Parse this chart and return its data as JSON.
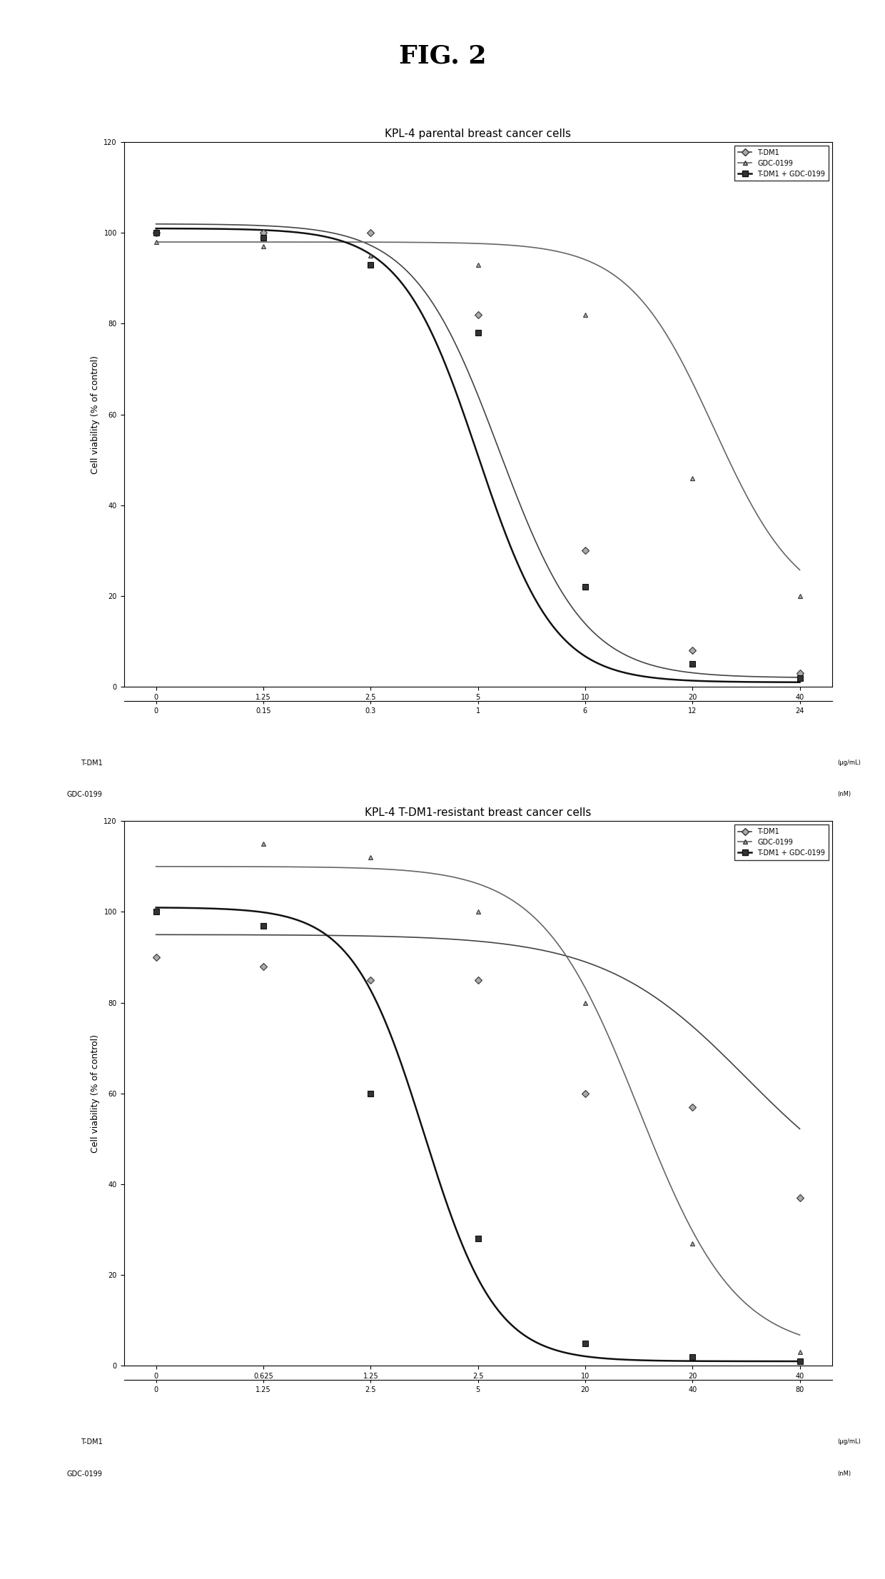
{
  "fig_title": "FIG. 2",
  "plot1_title": "KPL-4 parental breast cancer cells",
  "plot2_title": "KPL-4 T-DM1-resistant breast cancer cells",
  "ylabel": "Cell viability (% of control)",
  "ylim": [
    0,
    120
  ],
  "yticks": [
    0,
    20,
    40,
    60,
    80,
    100,
    120
  ],
  "plot1_xticks_top": [
    "0",
    "1.25",
    "2.5",
    "5",
    "10",
    "20",
    "40"
  ],
  "plot1_xticks_bot": [
    "0",
    "0.15",
    "0.3",
    "1",
    "6",
    "12",
    "24"
  ],
  "plot2_xticks_top": [
    "0",
    "0.625",
    "1.25",
    "2.5",
    "10",
    "20",
    "40"
  ],
  "plot2_xticks_bot": [
    "0",
    "1.25",
    "2.5",
    "5",
    "20",
    "40",
    "80"
  ],
  "xlabel_row1": "T-DM1",
  "xlabel_row2": "GDC-0199",
  "xunits_row1": "(μg/mL)",
  "xunits_row2": "(nM)",
  "legend_labels": [
    "T-DM1",
    "GDC-0199",
    "T-DM1 + GDC-0199"
  ],
  "p1_tdm1_pts_x": [
    0,
    1,
    2,
    3,
    4,
    5,
    6
  ],
  "p1_tdm1_pts_y": [
    100,
    100,
    100,
    82,
    30,
    8,
    3
  ],
  "p1_gdc_pts_x": [
    0,
    1,
    2,
    3,
    4,
    5,
    6
  ],
  "p1_gdc_pts_y": [
    98,
    97,
    95,
    93,
    82,
    46,
    20
  ],
  "p1_combo_pts_x": [
    0,
    1,
    2,
    3,
    4,
    5,
    6
  ],
  "p1_combo_pts_y": [
    100,
    99,
    93,
    78,
    22,
    5,
    2
  ],
  "p1_tdm1_sig": [
    3.2,
    2.5,
    102,
    2
  ],
  "p1_gdc_sig": [
    5.2,
    2.5,
    98,
    16
  ],
  "p1_combo_sig": [
    3.0,
    2.8,
    101,
    1
  ],
  "p2_tdm1_pts_x": [
    0,
    1,
    2,
    3,
    4,
    5,
    6
  ],
  "p2_tdm1_pts_y": [
    90,
    88,
    85,
    85,
    60,
    57,
    37
  ],
  "p2_gdc_pts_x": [
    0,
    1,
    2,
    3,
    4,
    5,
    6
  ],
  "p2_gdc_pts_y": [
    100,
    115,
    112,
    100,
    80,
    27,
    3
  ],
  "p2_combo_pts_x": [
    0,
    1,
    2,
    3,
    4,
    5,
    6
  ],
  "p2_combo_pts_y": [
    100,
    97,
    60,
    28,
    5,
    2,
    1
  ],
  "p2_tdm1_sig": [
    5.5,
    1.5,
    95,
    32
  ],
  "p2_gdc_sig": [
    4.5,
    2.2,
    110,
    3
  ],
  "p2_combo_sig": [
    2.5,
    3.0,
    101,
    1
  ],
  "background_color": "#ffffff",
  "fig_title_fontsize": 26,
  "plot_title_fontsize": 11,
  "axis_label_fontsize": 9,
  "tick_fontsize": 7,
  "legend_fontsize": 7
}
